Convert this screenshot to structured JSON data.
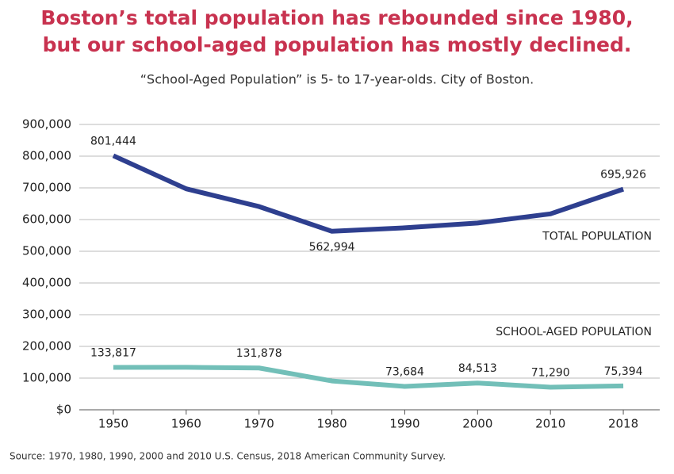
{
  "chart_data": {
    "type": "line",
    "title": [
      "Boston’s total population has rebounded since 1980,",
      "but our school-aged population has mostly declined."
    ],
    "subtitle": "“School-Aged Population” is 5- to 17-year-olds. City of Boston.",
    "source": "Source: 1970, 1980, 1990, 2000 and 2010 U.S. Census, 2018 American Community Survey.",
    "categories": [
      "1950",
      "1960",
      "1970",
      "1980",
      "1990",
      "2000",
      "2010",
      "2018"
    ],
    "series": [
      {
        "name": "TOTAL POPULATION",
        "color": "#2e3f8f",
        "values": [
          801444,
          697000,
          641000,
          562994,
          574000,
          589000,
          618000,
          695926
        ],
        "value_labels": [
          "801,444",
          null,
          null,
          "562,994",
          null,
          null,
          null,
          "695,926"
        ]
      },
      {
        "name": "SCHOOL-AGED POPULATION",
        "color": "#72bfb8",
        "values": [
          133817,
          134000,
          131878,
          91000,
          73684,
          84513,
          71290,
          75394
        ],
        "value_labels": [
          "133,817",
          null,
          "131,878",
          null,
          "73,684",
          "84,513",
          "71,290",
          "75,394"
        ]
      }
    ],
    "ylim": [
      0,
      900000
    ],
    "yticks": [
      {
        "value": 0,
        "label": "$0"
      },
      {
        "value": 100000,
        "label": "100,000"
      },
      {
        "value": 200000,
        "label": "200,000"
      },
      {
        "value": 300000,
        "label": "300,000"
      },
      {
        "value": 400000,
        "label": "400,000"
      },
      {
        "value": 500000,
        "label": "500,000"
      },
      {
        "value": 600000,
        "label": "600,000"
      },
      {
        "value": 700000,
        "label": "700,000"
      },
      {
        "value": 800000,
        "label": "800,000"
      },
      {
        "value": 900000,
        "label": "900,000"
      }
    ],
    "grid": true
  }
}
